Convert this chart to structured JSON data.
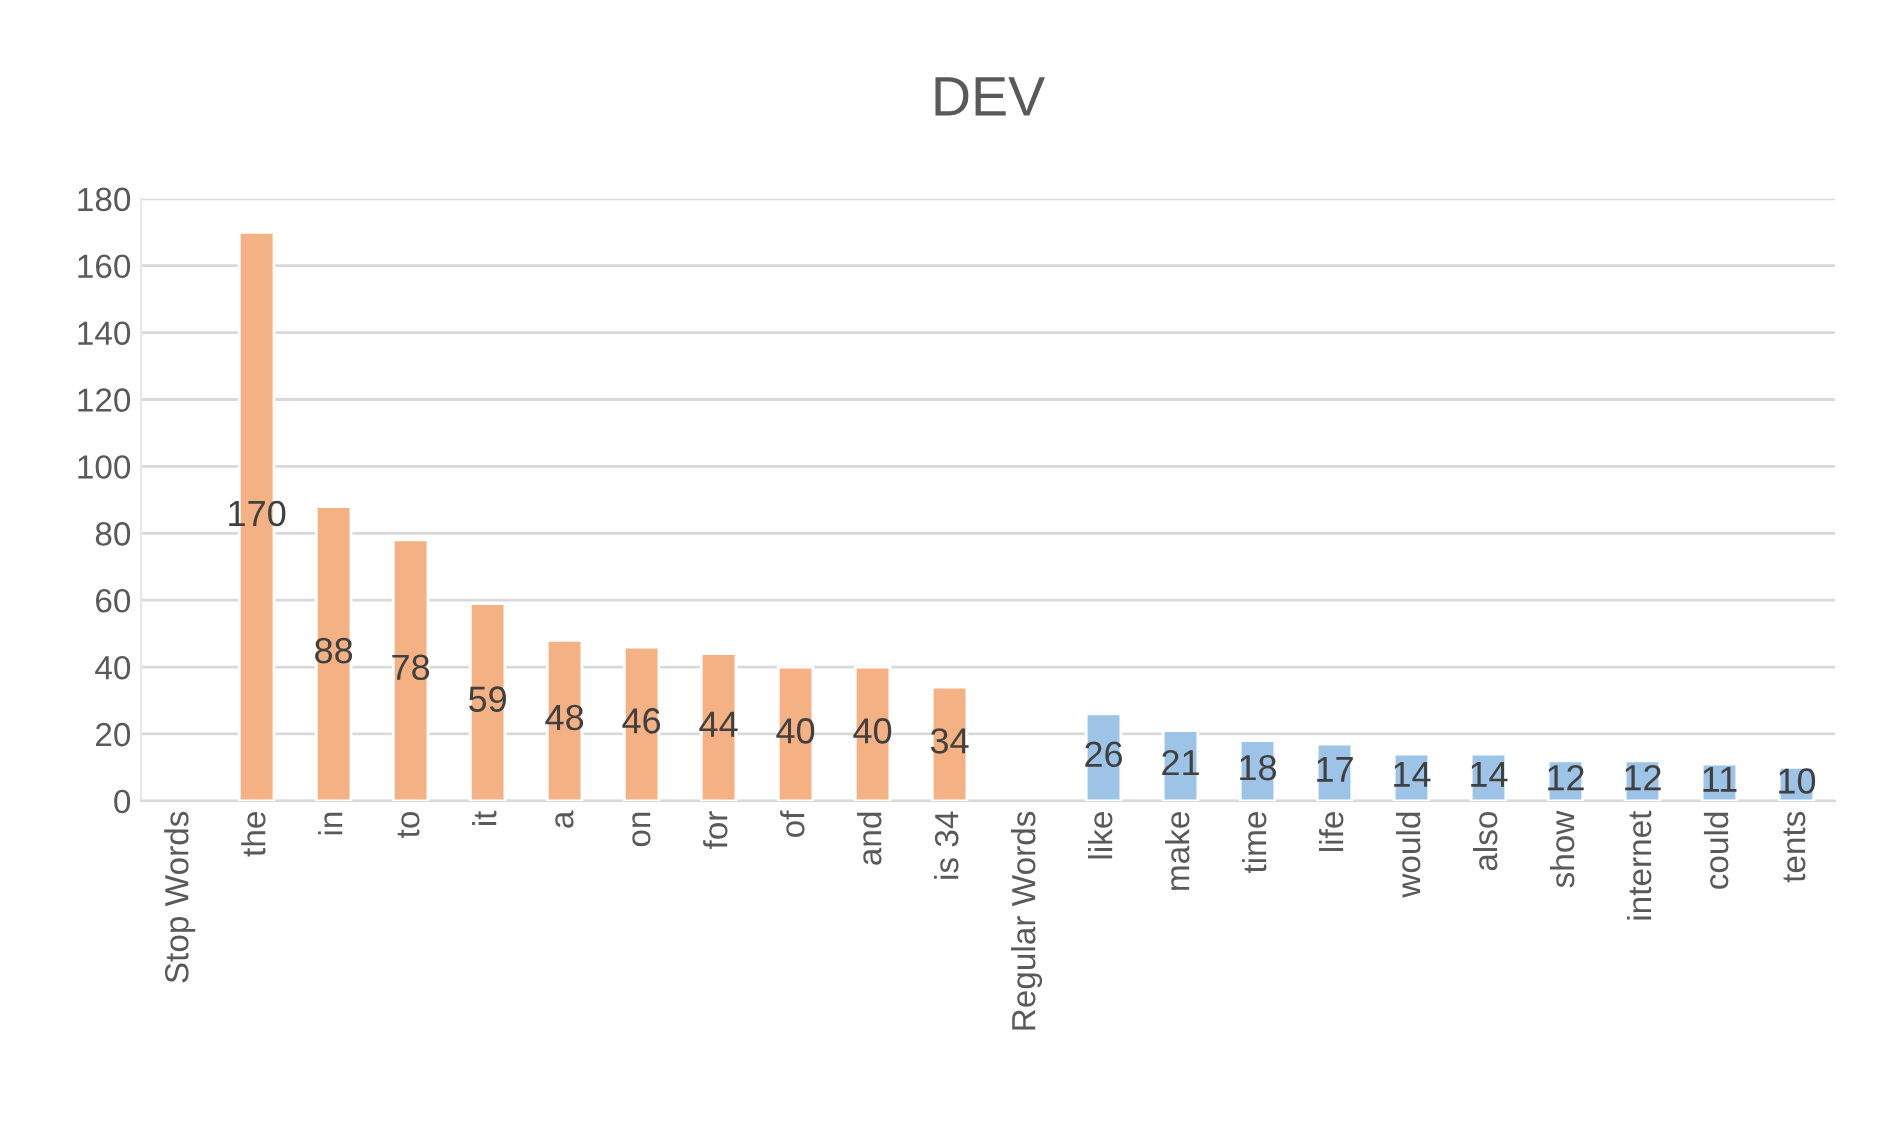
{
  "chart_data": {
    "type": "bar",
    "title": "DEV",
    "categories": [
      "Stop Words",
      "the",
      "in",
      "to",
      "it",
      "a",
      "on",
      "for",
      "of",
      "and",
      "is 34",
      "Regular Words",
      "like",
      "make",
      "time",
      "life",
      "would",
      "also",
      "show",
      "internet",
      "could",
      "tents"
    ],
    "values": [
      null,
      170,
      88,
      78,
      59,
      48,
      46,
      44,
      40,
      40,
      34,
      null,
      26,
      21,
      18,
      17,
      14,
      14,
      12,
      12,
      11,
      10
    ],
    "colors": [
      null,
      "#f4b183",
      "#f4b183",
      "#f4b183",
      "#f4b183",
      "#f4b183",
      "#f4b183",
      "#f4b183",
      "#f4b183",
      "#f4b183",
      "#f4b183",
      null,
      "#9dc3e6",
      "#9dc3e6",
      "#9dc3e6",
      "#9dc3e6",
      "#9dc3e6",
      "#9dc3e6",
      "#9dc3e6",
      "#9dc3e6",
      "#9dc3e6",
      "#9dc3e6"
    ],
    "ylim": [
      0,
      180
    ],
    "yticks": [
      0,
      20,
      40,
      60,
      80,
      100,
      120,
      140,
      160,
      180
    ],
    "grid": "y",
    "data_labels": true,
    "legend": false
  }
}
